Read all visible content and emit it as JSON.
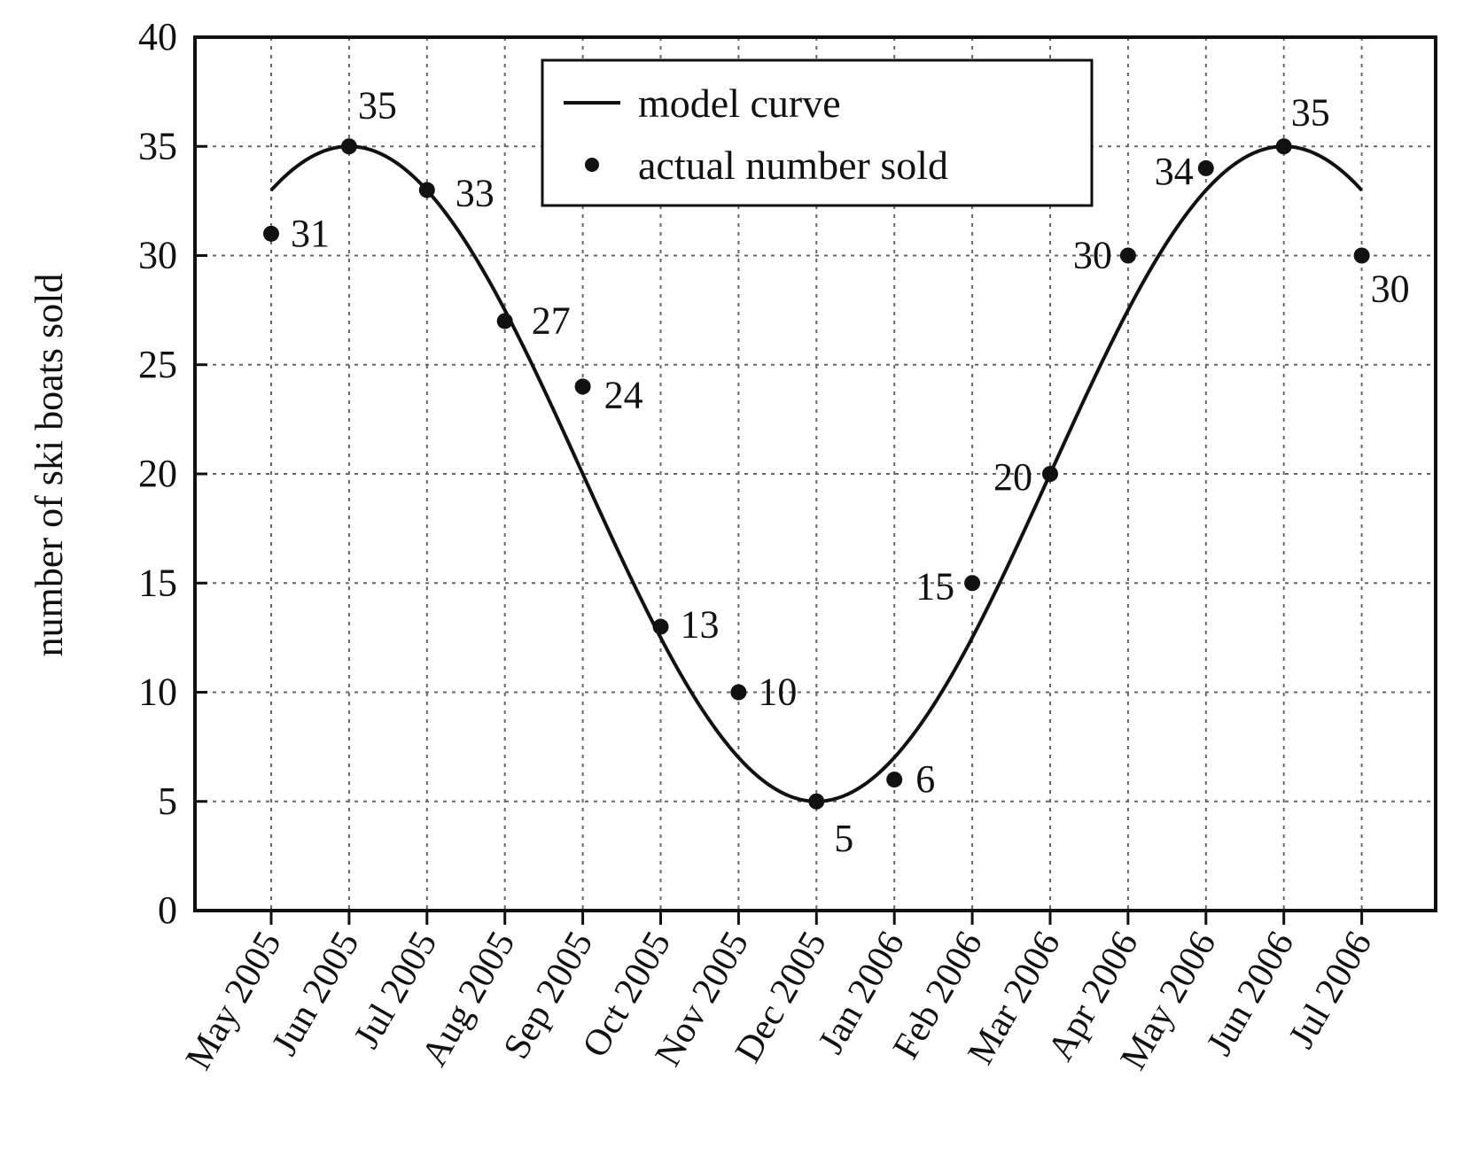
{
  "chart_data": {
    "type": "scatter",
    "title": "",
    "xlabel": "",
    "ylabel": "number of ski boats sold",
    "ylim": [
      0,
      40
    ],
    "yticks": [
      0,
      5,
      10,
      15,
      20,
      25,
      30,
      35,
      40
    ],
    "grid": true,
    "legend_position": "top-center",
    "categories": [
      "May 2005",
      "Jun 2005",
      "Jul 2005",
      "Aug 2005",
      "Sep 2005",
      "Oct 2005",
      "Nov 2005",
      "Dec 2005",
      "Jan 2006",
      "Feb 2006",
      "Mar 2006",
      "Apr 2006",
      "May 2006",
      "Jun 2006",
      "Jul 2006"
    ],
    "series": [
      {
        "name": "model curve",
        "kind": "line",
        "model": {
          "form": "A*cos(2*pi*(t - peak_index)/period) + D",
          "A": 15,
          "D": 20,
          "period": 12,
          "peak_index": 1
        }
      },
      {
        "name": "actual number sold",
        "kind": "scatter",
        "values": [
          31,
          35,
          33,
          27,
          24,
          13,
          10,
          5,
          6,
          15,
          20,
          30,
          34,
          35,
          30
        ],
        "labels": [
          "31",
          "35",
          "33",
          "27",
          "24",
          "13",
          "10",
          "5",
          "6",
          "15",
          "20",
          "30",
          "34",
          "35",
          "30"
        ]
      }
    ]
  }
}
